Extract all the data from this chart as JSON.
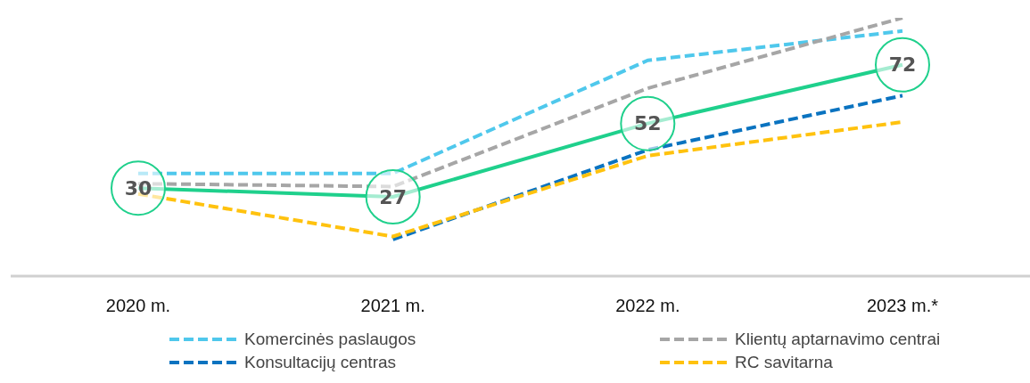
{
  "chart_data": {
    "type": "line",
    "categories": [
      "2020 m.",
      "2021 m.",
      "2022 m.",
      "2023 m.*"
    ],
    "tick_labels": "x",
    "legend": "bottom",
    "marker": "none",
    "grid": false,
    "series": [
      {
        "name": "Komercinės paslaugos",
        "color": "#4fc8ec",
        "line_style": "dashed",
        "values": [
          35,
          35,
          73.5,
          83.5
        ]
      },
      {
        "name": "Klientų aptarnavimo centrai",
        "color": "#a6a6a6",
        "line_style": "dashed",
        "values": [
          31.5,
          30.5,
          64,
          88
        ]
      },
      {
        "name": "Konsultacijų centras",
        "color": "#0a73c0",
        "line_style": "dashed",
        "values": [
          null,
          12.5,
          43,
          61.5
        ]
      },
      {
        "name": "RC savitarna",
        "color": "#ffc20e",
        "line_style": "dashed",
        "values": [
          28,
          13.5,
          41,
          52.5
        ]
      },
      {
        "color": "#1fd08c",
        "line_style": "solid",
        "values": [
          30,
          27,
          52,
          72
        ],
        "value_labels": [
          "30",
          "27",
          "52",
          "72"
        ]
      }
    ]
  }
}
